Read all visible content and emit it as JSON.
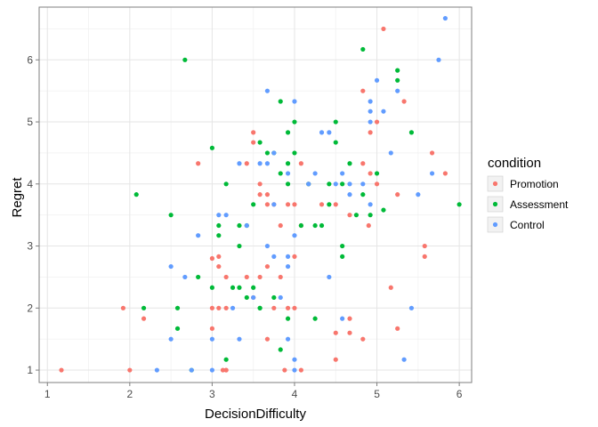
{
  "chart_data": {
    "type": "scatter",
    "xlabel": "DecisionDifficulty",
    "ylabel": "Regret",
    "xlim": [
      0.9,
      6.15
    ],
    "ylim": [
      0.8,
      6.85
    ],
    "xticks": [
      "1",
      "2",
      "3",
      "4",
      "5",
      "6"
    ],
    "yticks": [
      "1",
      "2",
      "3",
      "4",
      "5",
      "6"
    ],
    "grid": true,
    "legend": {
      "title": "condition",
      "placement": "right"
    },
    "series": [
      {
        "name": "Promotion",
        "color": "#F8766D",
        "points": [
          [
            1.17,
            1.0
          ],
          [
            2.0,
            1.0
          ],
          [
            3.17,
            1.0
          ],
          [
            3.17,
            1.0
          ],
          [
            3.88,
            1.0
          ],
          [
            4.08,
            1.0
          ],
          [
            3.13,
            1.0
          ],
          [
            4.5,
            1.17
          ],
          [
            4.5,
            1.6
          ],
          [
            4.67,
            1.6
          ],
          [
            4.83,
            1.5
          ],
          [
            3.67,
            1.5
          ],
          [
            3.0,
            1.67
          ],
          [
            4.67,
            1.83
          ],
          [
            3.0,
            2.0
          ],
          [
            3.08,
            2.0
          ],
          [
            3.17,
            2.0
          ],
          [
            3.5,
            2.17
          ],
          [
            3.75,
            2.0
          ],
          [
            3.92,
            2.0
          ],
          [
            4.0,
            2.0
          ],
          [
            5.25,
            1.67
          ],
          [
            1.92,
            2.0
          ],
          [
            2.17,
            1.83
          ],
          [
            3.0,
            2.8
          ],
          [
            3.17,
            2.5
          ],
          [
            3.08,
            2.67
          ],
          [
            3.42,
            2.5
          ],
          [
            3.58,
            2.5
          ],
          [
            3.67,
            2.67
          ],
          [
            3.83,
            2.5
          ],
          [
            4.0,
            2.83
          ],
          [
            3.08,
            2.83
          ],
          [
            5.17,
            2.33
          ],
          [
            5.58,
            3.0
          ],
          [
            5.58,
            2.83
          ],
          [
            2.83,
            4.33
          ],
          [
            3.42,
            4.33
          ],
          [
            3.5,
            4.83
          ],
          [
            3.58,
            3.83
          ],
          [
            3.67,
            3.67
          ],
          [
            3.75,
            3.67
          ],
          [
            3.83,
            3.33
          ],
          [
            3.92,
            3.67
          ],
          [
            4.0,
            3.67
          ],
          [
            4.08,
            4.33
          ],
          [
            4.17,
            4.0
          ],
          [
            4.33,
            3.67
          ],
          [
            4.5,
            3.67
          ],
          [
            4.67,
            3.5
          ],
          [
            4.83,
            4.33
          ],
          [
            4.92,
            4.17
          ],
          [
            5.0,
            4.0
          ],
          [
            4.92,
            4.83
          ],
          [
            5.0,
            5.0
          ],
          [
            4.83,
            5.5
          ],
          [
            5.08,
            6.5
          ],
          [
            5.33,
            5.33
          ],
          [
            5.25,
            3.83
          ],
          [
            5.67,
            4.5
          ],
          [
            5.83,
            4.17
          ],
          [
            4.9,
            3.33
          ],
          [
            3.5,
            4.67
          ],
          [
            3.67,
            3.83
          ],
          [
            4.08,
            3.33
          ],
          [
            3.58,
            4.0
          ]
        ]
      },
      {
        "name": "Assessment",
        "color": "#00BA38",
        "points": [
          [
            2.75,
            1.0
          ],
          [
            3.17,
            1.17
          ],
          [
            2.17,
            2.0
          ],
          [
            2.58,
            1.67
          ],
          [
            2.58,
            2.0
          ],
          [
            2.5,
            3.5
          ],
          [
            2.08,
            3.83
          ],
          [
            2.67,
            6.0
          ],
          [
            2.83,
            2.5
          ],
          [
            3.0,
            4.58
          ],
          [
            3.08,
            3.33
          ],
          [
            3.08,
            3.17
          ],
          [
            3.25,
            2.33
          ],
          [
            3.33,
            2.33
          ],
          [
            3.33,
            3.0
          ],
          [
            3.33,
            3.33
          ],
          [
            3.42,
            3.33
          ],
          [
            3.42,
            2.17
          ],
          [
            3.5,
            2.33
          ],
          [
            3.58,
            2.0
          ],
          [
            3.58,
            4.67
          ],
          [
            3.67,
            4.5
          ],
          [
            3.75,
            4.5
          ],
          [
            3.83,
            4.17
          ],
          [
            3.92,
            4.33
          ],
          [
            4.0,
            4.5
          ],
          [
            4.0,
            5.0
          ],
          [
            4.08,
            3.33
          ],
          [
            4.17,
            4.0
          ],
          [
            4.25,
            3.33
          ],
          [
            4.33,
            3.33
          ],
          [
            4.42,
            3.67
          ],
          [
            4.42,
            4.0
          ],
          [
            4.5,
            4.67
          ],
          [
            4.58,
            4.0
          ],
          [
            4.58,
            3.0
          ],
          [
            4.58,
            2.83
          ],
          [
            4.67,
            4.33
          ],
          [
            4.75,
            3.5
          ],
          [
            4.83,
            3.83
          ],
          [
            4.92,
            3.5
          ],
          [
            5.0,
            4.17
          ],
          [
            5.08,
            3.58
          ],
          [
            5.25,
            5.83
          ],
          [
            5.25,
            5.67
          ],
          [
            5.42,
            4.83
          ],
          [
            6.0,
            3.67
          ],
          [
            4.83,
            6.17
          ],
          [
            4.25,
            1.83
          ],
          [
            3.58,
            2.0
          ],
          [
            3.75,
            2.17
          ],
          [
            3.92,
            1.83
          ],
          [
            3.83,
            1.33
          ],
          [
            3.0,
            2.33
          ],
          [
            3.92,
            4.83
          ],
          [
            3.83,
            5.33
          ],
          [
            4.5,
            5.0
          ],
          [
            3.17,
            4.0
          ],
          [
            3.5,
            3.67
          ],
          [
            3.92,
            4.0
          ]
        ]
      },
      {
        "name": "Control",
        "color": "#619CFF",
        "points": [
          [
            2.33,
            1.0
          ],
          [
            2.75,
            1.0
          ],
          [
            3.0,
            1.0
          ],
          [
            4.0,
            1.17
          ],
          [
            4.0,
            1.0
          ],
          [
            5.33,
            1.17
          ],
          [
            2.5,
            1.5
          ],
          [
            3.0,
            1.5
          ],
          [
            3.33,
            1.5
          ],
          [
            3.92,
            1.5
          ],
          [
            4.58,
            1.83
          ],
          [
            5.42,
            2.0
          ],
          [
            2.5,
            2.67
          ],
          [
            2.67,
            2.5
          ],
          [
            2.83,
            3.17
          ],
          [
            3.08,
            3.5
          ],
          [
            3.17,
            3.5
          ],
          [
            3.42,
            3.33
          ],
          [
            3.25,
            2.0
          ],
          [
            3.5,
            2.17
          ],
          [
            3.67,
            3.0
          ],
          [
            3.75,
            2.83
          ],
          [
            3.83,
            2.17
          ],
          [
            3.92,
            2.67
          ],
          [
            3.92,
            2.83
          ],
          [
            4.42,
            2.5
          ],
          [
            3.33,
            4.33
          ],
          [
            3.58,
            4.33
          ],
          [
            3.67,
            4.33
          ],
          [
            3.67,
            5.5
          ],
          [
            3.75,
            4.5
          ],
          [
            3.92,
            4.17
          ],
          [
            4.0,
            5.33
          ],
          [
            4.17,
            4.0
          ],
          [
            4.25,
            4.17
          ],
          [
            4.33,
            4.83
          ],
          [
            4.42,
            4.83
          ],
          [
            4.5,
            4.0
          ],
          [
            4.58,
            4.17
          ],
          [
            4.67,
            3.83
          ],
          [
            4.67,
            4.0
          ],
          [
            4.83,
            4.0
          ],
          [
            4.92,
            3.67
          ],
          [
            4.92,
            5.17
          ],
          [
            4.92,
            5.0
          ],
          [
            5.0,
            5.67
          ],
          [
            5.08,
            5.17
          ],
          [
            5.17,
            4.5
          ],
          [
            4.92,
            5.33
          ],
          [
            5.25,
            5.5
          ],
          [
            5.5,
            3.83
          ],
          [
            5.75,
            6.0
          ],
          [
            5.83,
            6.67
          ],
          [
            5.67,
            4.17
          ],
          [
            4.0,
            3.17
          ],
          [
            3.75,
            3.67
          ]
        ]
      }
    ]
  }
}
